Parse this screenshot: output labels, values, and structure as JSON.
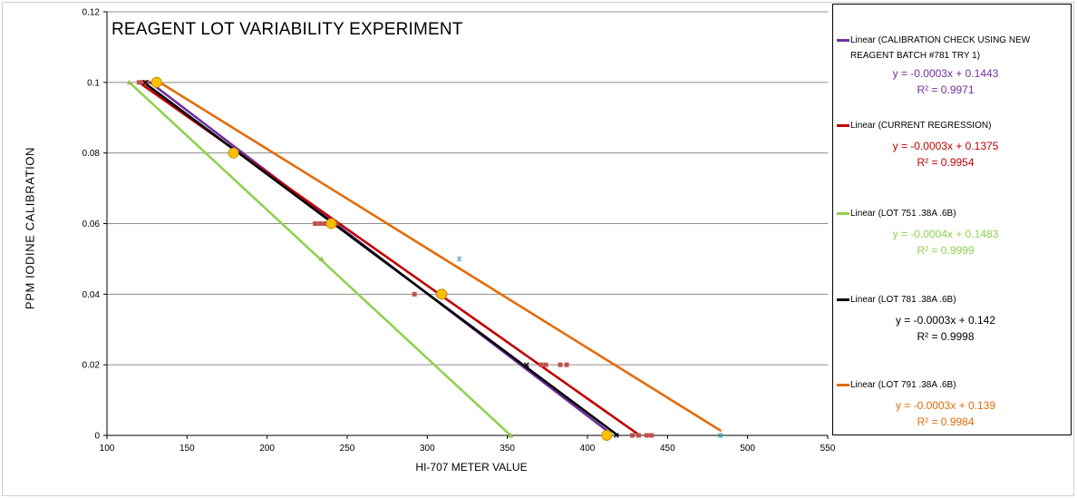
{
  "chart_data": {
    "type": "scatter",
    "title": "REAGENT LOT VARIABILITY EXPERIMENT",
    "xlabel": "HI-707 METER VALUE",
    "ylabel": "PPM IODINE CALIBRATION",
    "xlim": [
      100,
      550
    ],
    "ylim": [
      0,
      0.12
    ],
    "x_ticks": [
      "100",
      "150",
      "200",
      "250",
      "300",
      "350",
      "400",
      "450",
      "500",
      "550"
    ],
    "y_ticks": [
      "0",
      "0.02",
      "0.04",
      "0.06",
      "0.08",
      "0.1",
      "0.12"
    ],
    "grid": "horizontal",
    "legend_position": "right",
    "series": [
      {
        "name": "CALIBRATION CHECK USING NEW REAGENT BATCH #781 TRY 1",
        "trendline_label": "Linear (CALIBRATION CHECK USING NEW REAGENT BATCH #781 TRY 1)",
        "color": "#7030a0",
        "marker_color": "#ffc000",
        "marker": "circle",
        "points": [
          [
            131,
            0.1
          ],
          [
            179,
            0.08
          ],
          [
            240,
            0.06
          ],
          [
            309,
            0.04
          ],
          [
            412,
            0
          ]
        ],
        "trendline": [
          [
            127,
            0.1
          ],
          [
            412,
            0.0014
          ]
        ],
        "equation": "y = -0.0003x + 0.1443",
        "r2": "R² = 0.9971"
      },
      {
        "name": "CURRENT REGRESSION",
        "trendline_label": "Linear (CURRENT REGRESSION)",
        "color": "#c00000",
        "marker_color": "#c0504d",
        "marker": "square",
        "points": [
          [
            120,
            0.1
          ],
          [
            122,
            0.1
          ],
          [
            125,
            0.1
          ],
          [
            230,
            0.06
          ],
          [
            233,
            0.06
          ],
          [
            236,
            0.06
          ],
          [
            240,
            0.06
          ],
          [
            243,
            0.06
          ],
          [
            292,
            0.04
          ],
          [
            307,
            0.04
          ],
          [
            311,
            0.04
          ],
          [
            371,
            0.02
          ],
          [
            374,
            0.02
          ],
          [
            383,
            0.02
          ],
          [
            387,
            0.02
          ],
          [
            428,
            0
          ],
          [
            432,
            0
          ],
          [
            437,
            0
          ],
          [
            440,
            0
          ]
        ],
        "trendline": [
          [
            120,
            0.1
          ],
          [
            432,
            0.0002
          ]
        ],
        "equation": "y = -0.0003x + 0.1375",
        "r2": "R² = 0.9954"
      },
      {
        "name": "LOT 751 .38A .6B",
        "trendline_label": "Linear (LOT 751 .38A .6B)",
        "color": "#92d050",
        "marker_color": "#9bbb59",
        "marker": "triangle",
        "points": [
          [
            114,
            0.1
          ],
          [
            234,
            0.05
          ],
          [
            352,
            0
          ]
        ],
        "trendline": [
          [
            114,
            0.1
          ],
          [
            352,
            0
          ]
        ],
        "equation": "y = -0.0004x + 0.1483",
        "r2": "R² = 0.9999"
      },
      {
        "name": "LOT 781 .38A .6B",
        "trendline_label": "Linear (LOT 781 .38A .6B)",
        "color": "#000000",
        "marker_color": "#000000",
        "marker": "x",
        "points": [
          [
            124,
            0.1
          ],
          [
            362,
            0.02
          ],
          [
            418,
            0
          ]
        ],
        "trendline": [
          [
            123,
            0.1
          ],
          [
            419,
            0
          ]
        ],
        "equation": "y = -0.0003x + 0.142",
        "r2": "R² = 0.9998"
      },
      {
        "name": "LOT 791 .38A .6B",
        "trendline_label": "Linear (LOT 791 .38A .6B)",
        "color": "#e36c09",
        "marker_color": "#4bacc6",
        "marker": "star",
        "points": [
          [
            132,
            0.1
          ],
          [
            320,
            0.05
          ],
          [
            483,
            0
          ]
        ],
        "trendline": [
          [
            133,
            0.1
          ],
          [
            483,
            0.0014
          ]
        ],
        "equation": "y = -0.0003x + 0.139",
        "r2": "R² = 0.9984"
      }
    ]
  }
}
